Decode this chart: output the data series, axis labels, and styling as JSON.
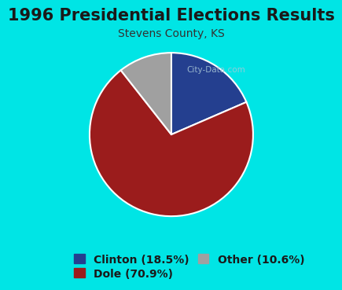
{
  "title": "1996 Presidential Elections Results",
  "subtitle": "Stevens County, KS",
  "labels": [
    "Clinton",
    "Dole",
    "Other"
  ],
  "values": [
    18.5,
    70.9,
    10.6
  ],
  "colors": [
    "#243f8f",
    "#9b1c1c",
    "#a0a0a0"
  ],
  "legend_labels": [
    "Clinton (18.5%)",
    "Dole (70.9%)",
    "Other (10.6%)"
  ],
  "background_color": "#00e5e5",
  "chart_bg_color": "#e8eed8",
  "title_color": "#1a1a1a",
  "subtitle_color": "#333333",
  "title_fontsize": 15,
  "subtitle_fontsize": 10,
  "legend_fontsize": 10,
  "startangle": 90,
  "watermark": "City-Data.com"
}
